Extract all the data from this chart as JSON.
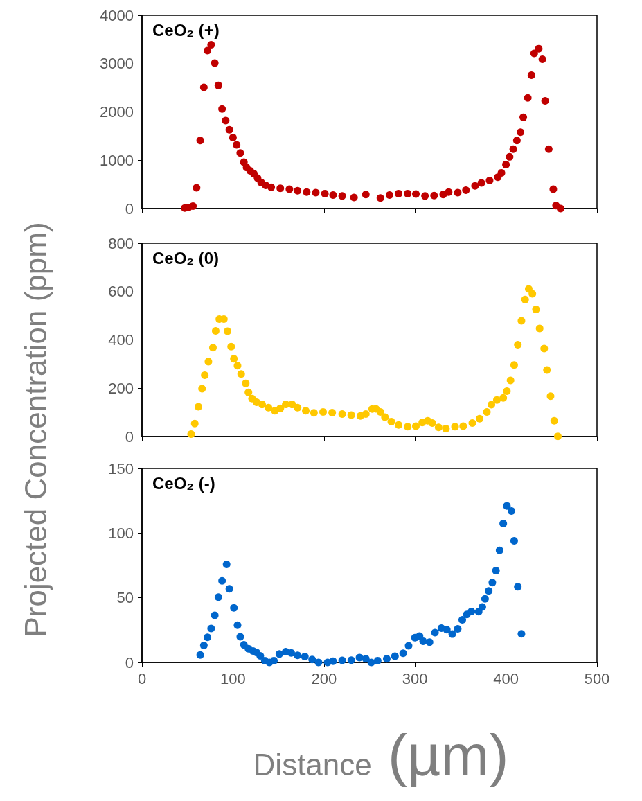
{
  "chart_data": [
    {
      "type": "scatter",
      "title": "CeO₂ (+)",
      "ylabel": "Projected Concentration (ppm)",
      "color": "#c00000",
      "marker": "circle",
      "tick_labels": "y",
      "xlim": [
        0,
        500
      ],
      "xticks": [
        0,
        100,
        200,
        300,
        400,
        500
      ],
      "ylim": [
        0,
        4000
      ],
      "yticks": [
        0,
        1000,
        2000,
        3000,
        4000
      ],
      "x": [
        47,
        51,
        56,
        60,
        64,
        68,
        72,
        76,
        80,
        84,
        88,
        92,
        96,
        100,
        104,
        108,
        112,
        115,
        119,
        123,
        127,
        131,
        136,
        142,
        152,
        162,
        171,
        181,
        191,
        201,
        210,
        220,
        233,
        246,
        262,
        272,
        282,
        292,
        301,
        311,
        321,
        331,
        337,
        347,
        356,
        366,
        373,
        382,
        391,
        395,
        400,
        404,
        408,
        412,
        416,
        419,
        424,
        428,
        431,
        436,
        440,
        443,
        447,
        452,
        455,
        460
      ],
      "values": [
        10,
        20,
        50,
        430,
        1410,
        2510,
        3270,
        3390,
        3010,
        2550,
        2060,
        1820,
        1630,
        1470,
        1320,
        1150,
        960,
        850,
        780,
        720,
        630,
        540,
        480,
        440,
        420,
        400,
        370,
        340,
        330,
        310,
        280,
        260,
        230,
        290,
        220,
        280,
        310,
        310,
        300,
        260,
        270,
        290,
        340,
        330,
        380,
        470,
        530,
        580,
        650,
        740,
        910,
        1070,
        1230,
        1410,
        1580,
        1890,
        2290,
        2760,
        3210,
        3310,
        3090,
        2230,
        1230,
        400,
        60,
        0
      ]
    },
    {
      "type": "scatter",
      "title": "CeO₂ (0)",
      "color": "#ffc800",
      "marker": "circle",
      "tick_labels": "y",
      "xlim": [
        0,
        500
      ],
      "xticks": [
        0,
        100,
        200,
        300,
        400,
        500
      ],
      "ylim": [
        0,
        800
      ],
      "yticks": [
        0,
        200,
        400,
        600,
        800
      ],
      "x": [
        54,
        58,
        62,
        66,
        69,
        73,
        78,
        81,
        85,
        90,
        94,
        98,
        101,
        105,
        109,
        114,
        117,
        121,
        126,
        132,
        139,
        146,
        152,
        158,
        165,
        171,
        180,
        189,
        199,
        209,
        220,
        230,
        240,
        246,
        253,
        257,
        262,
        267,
        274,
        282,
        292,
        301,
        308,
        314,
        319,
        326,
        334,
        344,
        353,
        363,
        371,
        379,
        384,
        390,
        397,
        401,
        405,
        409,
        413,
        417,
        421,
        425,
        429,
        433,
        437,
        442,
        445,
        449,
        453,
        457
      ],
      "values": [
        10,
        54,
        123,
        198,
        254,
        310,
        368,
        437,
        486,
        486,
        436,
        372,
        322,
        293,
        259,
        220,
        183,
        157,
        142,
        133,
        120,
        107,
        117,
        133,
        133,
        120,
        107,
        98,
        102,
        99,
        93,
        89,
        85,
        93,
        114,
        115,
        102,
        80,
        62,
        48,
        41,
        43,
        58,
        65,
        56,
        38,
        33,
        41,
        43,
        56,
        74,
        102,
        132,
        151,
        160,
        188,
        232,
        296,
        380,
        479,
        567,
        611,
        591,
        526,
        447,
        364,
        275,
        167,
        65,
        1
      ]
    },
    {
      "type": "scatter",
      "title": "CeO₂ (-)",
      "xlabel": "Distance (µm)",
      "color": "#0066cc",
      "marker": "circle",
      "xlim": [
        0,
        500
      ],
      "xticks": [
        0,
        100,
        200,
        300,
        400,
        500
      ],
      "ylim": [
        0,
        150
      ],
      "yticks": [
        0,
        50,
        100,
        150
      ],
      "x": [
        64,
        68,
        72,
        76,
        80,
        84,
        88,
        93,
        96,
        101,
        105,
        108,
        112,
        117,
        122,
        126,
        130,
        135,
        140,
        145,
        151,
        158,
        164,
        171,
        179,
        187,
        194,
        204,
        210,
        220,
        230,
        239,
        246,
        252,
        259,
        269,
        278,
        287,
        293,
        300,
        305,
        309,
        316,
        322,
        329,
        335,
        341,
        347,
        352,
        357,
        362,
        370,
        374,
        377,
        381,
        385,
        389,
        393,
        397,
        401,
        406,
        409,
        413,
        417
      ],
      "values": [
        5.8,
        13.1,
        19.4,
        26.3,
        36.4,
        50.5,
        63.1,
        75.8,
        56.9,
        42.2,
        28.8,
        19.8,
        13.6,
        10.6,
        8.8,
        7.6,
        5.1,
        1.4,
        0,
        1.4,
        6.5,
        8.3,
        7.4,
        5.5,
        4.6,
        2.3,
        0,
        0,
        0.9,
        1.6,
        1.8,
        3.7,
        2.8,
        0,
        1.4,
        2.8,
        4.8,
        7.1,
        12.9,
        19.1,
        20.3,
        16.4,
        15.7,
        23,
        26.5,
        25.3,
        21.9,
        26,
        33,
        37.1,
        39.4,
        39.2,
        42.9,
        49.1,
        55.3,
        61.8,
        71,
        86.6,
        107.4,
        121,
        117,
        94,
        58.5,
        22.1
      ]
    }
  ]
}
